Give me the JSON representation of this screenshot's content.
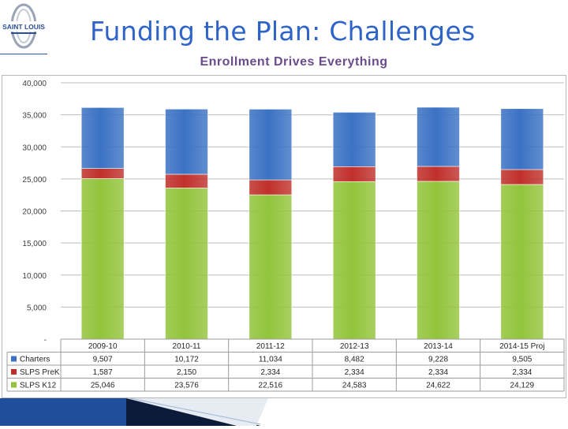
{
  "header": {
    "title": "Funding the Plan: Challenges",
    "subtitle": "Enrollment Drives Everything",
    "logo_text": "SAINT LOUIS"
  },
  "colors": {
    "charters": "#3b72c4",
    "slps_prek": "#c0302b",
    "slps_k12": "#92c43b",
    "title": "#2e63c8",
    "subtitle": "#6b4b8c"
  },
  "chart_data": {
    "type": "bar",
    "stacked": true,
    "categories": [
      "2009-10",
      "2010-11",
      "2011-12",
      "2012-13",
      "2013-14",
      "2014-15 Proj"
    ],
    "series": [
      {
        "name": "SLPS K12",
        "values": [
          25046,
          23576,
          22516,
          24583,
          24622,
          24129
        ],
        "labels": [
          "25,046",
          "23,576",
          "22,516",
          "24,583",
          "24,622",
          "24,129"
        ]
      },
      {
        "name": "SLPS PreK",
        "values": [
          1587,
          2150,
          2334,
          2334,
          2334,
          2334
        ],
        "labels": [
          "1,587",
          "2,150",
          "2,334",
          "2,334",
          "2,334",
          "2,334"
        ]
      },
      {
        "name": "Charters",
        "values": [
          9507,
          10172,
          11034,
          8482,
          9228,
          9505
        ],
        "labels": [
          "9,507",
          "10,172",
          "11,034",
          "8,482",
          "9,228",
          "9,505"
        ]
      }
    ],
    "table_order": [
      "Charters",
      "SLPS PreK",
      "SLPS K12"
    ],
    "ylim": [
      0,
      40000
    ],
    "yticks": [
      0,
      5000,
      10000,
      15000,
      20000,
      25000,
      30000,
      35000,
      40000
    ],
    "ytick_labels": [
      "-",
      "5,000",
      "10,000",
      "15,000",
      "20,000",
      "25,000",
      "30,000",
      "35,000",
      "40,000"
    ],
    "grid": true,
    "legend": "data-table"
  }
}
